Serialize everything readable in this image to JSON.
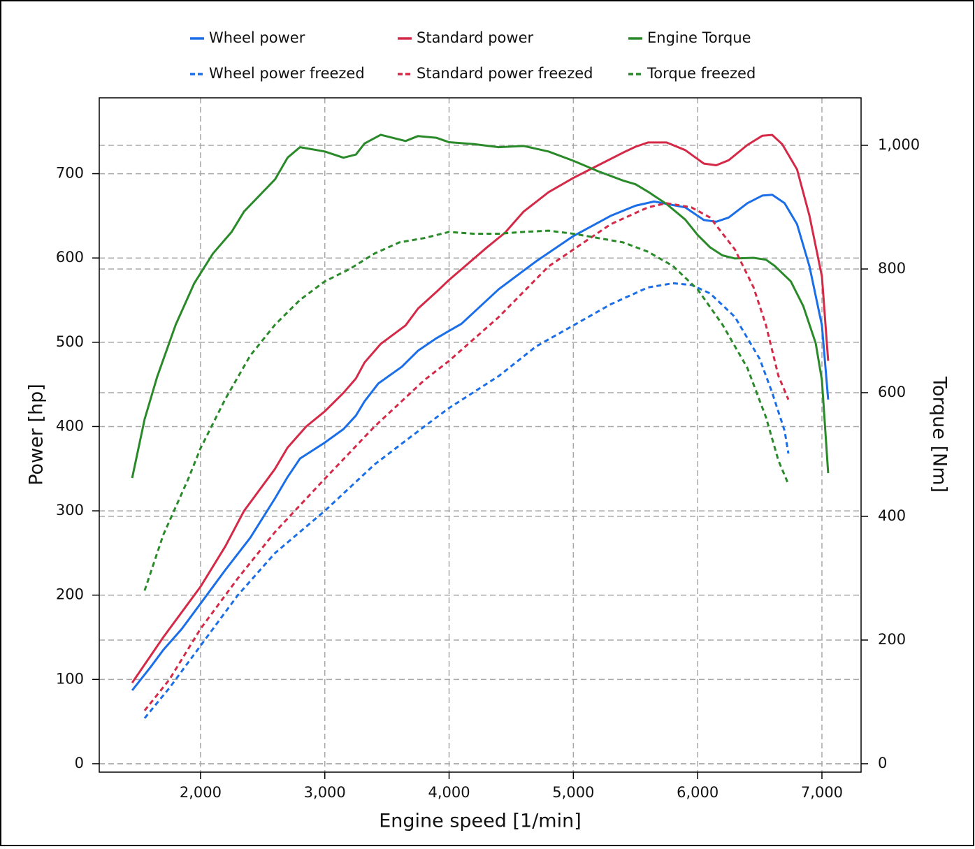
{
  "chart_data": {
    "type": "line",
    "x_label": "Engine speed [1/min]",
    "y_label": "Power [hp]",
    "y2_label": "Torque [Nm]",
    "xlim": [
      1185,
      7315
    ],
    "xticks": [
      {
        "value": 2000,
        "label": "2,000"
      },
      {
        "value": 3000,
        "label": "3,000"
      },
      {
        "value": 4000,
        "label": "4,000"
      },
      {
        "value": 5000,
        "label": "5,000"
      },
      {
        "value": 6000,
        "label": "6,000"
      },
      {
        "value": 7000,
        "label": "7,000"
      }
    ],
    "ylim": [
      -10,
      790
    ],
    "yticks": [
      0,
      100,
      200,
      300,
      400,
      500,
      600,
      700
    ],
    "y2lim": [
      -13.6,
      1076.8
    ],
    "y2ticks": [
      0,
      200,
      400,
      600,
      800,
      {
        "value": 1000,
        "label": "1,000"
      }
    ],
    "grid": true,
    "legend": "top",
    "series": [
      {
        "name": "Wheel power",
        "color": "#1a6ee8",
        "line_style": "solid",
        "x": [
          1450,
          1600,
          1700,
          1850,
          2000,
          2200,
          2400,
          2600,
          2700,
          2800,
          3000,
          3150,
          3250,
          3320,
          3430,
          3620,
          3750,
          3900,
          4100,
          4400,
          4700,
          5000,
          5300,
          5500,
          5650,
          5900,
          6050,
          6150,
          6250,
          6400,
          6520,
          6600,
          6700,
          6800,
          6900,
          7000,
          7050
        ],
        "values": [
          87,
          115,
          135,
          160,
          190,
          230,
          268,
          315,
          340,
          362,
          381,
          397,
          413,
          430,
          451,
          471,
          490,
          505,
          522,
          563,
          596,
          626,
          650,
          662,
          667,
          660,
          645,
          643,
          648,
          665,
          674,
          675,
          665,
          640,
          590,
          520,
          432
        ]
      },
      {
        "name": "Standard power",
        "color": "#d42a48",
        "line_style": "solid",
        "x": [
          1450,
          1700,
          2000,
          2200,
          2350,
          2600,
          2700,
          2850,
          3000,
          3150,
          3250,
          3320,
          3450,
          3650,
          3750,
          3900,
          4000,
          4300,
          4450,
          4600,
          4800,
          5000,
          5200,
          5400,
          5500,
          5600,
          5750,
          5900,
          6050,
          6150,
          6250,
          6400,
          6520,
          6600,
          6680,
          6800,
          6900,
          7000,
          7050
        ],
        "values": [
          96,
          150,
          210,
          258,
          300,
          350,
          375,
          400,
          418,
          440,
          457,
          476,
          498,
          520,
          540,
          560,
          574,
          612,
          630,
          655,
          678,
          695,
          710,
          725,
          732,
          737,
          737,
          728,
          712,
          710,
          716,
          734,
          745,
          746,
          735,
          705,
          650,
          578,
          478
        ]
      },
      {
        "name": "Engine Torque",
        "color": "#2a8a2a",
        "line_style": "solid",
        "axis": "y2",
        "x": [
          1450,
          1550,
          1650,
          1800,
          1950,
          2100,
          2250,
          2350,
          2600,
          2700,
          2800,
          3000,
          3150,
          3250,
          3320,
          3450,
          3650,
          3750,
          3900,
          4000,
          4200,
          4400,
          4600,
          4800,
          5000,
          5200,
          5400,
          5500,
          5600,
          5750,
          5900,
          6000,
          6100,
          6200,
          6300,
          6450,
          6550,
          6620,
          6750,
          6850,
          6950,
          7000,
          7050
        ],
        "values": [
          462,
          557,
          625,
          710,
          777,
          825,
          860,
          893,
          945,
          980,
          997,
          990,
          980,
          985,
          1003,
          1017,
          1007,
          1015,
          1012,
          1005,
          1002,
          997,
          999,
          990,
          975,
          958,
          943,
          937,
          925,
          905,
          880,
          855,
          835,
          822,
          817,
          818,
          815,
          805,
          780,
          740,
          680,
          620,
          470
        ]
      },
      {
        "name": "Wheel power freezed",
        "color": "#1a6ee8",
        "line_style": "dashed",
        "x": [
          1550,
          1750,
          2000,
          2300,
          2600,
          3000,
          3400,
          3800,
          4000,
          4400,
          4700,
          5000,
          5300,
          5600,
          5800,
          5950,
          6100,
          6300,
          6500,
          6600,
          6700,
          6730
        ],
        "values": [
          54,
          90,
          140,
          200,
          250,
          300,
          355,
          400,
          422,
          460,
          495,
          520,
          545,
          565,
          570,
          568,
          558,
          530,
          480,
          440,
          395,
          368
        ]
      },
      {
        "name": "Standard power freezed",
        "color": "#d42a48",
        "line_style": "dashed",
        "x": [
          1550,
          1750,
          2000,
          2300,
          2600,
          3000,
          3400,
          3800,
          4000,
          4400,
          4800,
          5000,
          5300,
          5600,
          5750,
          5950,
          6100,
          6300,
          6450,
          6550,
          6650,
          6730
        ],
        "values": [
          63,
          100,
          160,
          220,
          275,
          338,
          400,
          455,
          478,
          530,
          590,
          610,
          640,
          660,
          665,
          660,
          648,
          610,
          565,
          520,
          460,
          432
        ]
      },
      {
        "name": "Torque freezed",
        "color": "#2a8a2a",
        "line_style": "dashed",
        "axis": "y2",
        "x": [
          1550,
          1700,
          1900,
          2000,
          2200,
          2400,
          2600,
          2800,
          3000,
          3200,
          3400,
          3600,
          3800,
          4000,
          4200,
          4400,
          4600,
          4800,
          5000,
          5200,
          5400,
          5600,
          5800,
          6000,
          6200,
          6400,
          6550,
          6650,
          6730
        ],
        "values": [
          280,
          370,
          460,
          510,
          590,
          660,
          710,
          750,
          780,
          800,
          825,
          843,
          850,
          860,
          857,
          857,
          860,
          862,
          857,
          850,
          843,
          828,
          805,
          767,
          710,
          640,
          560,
          490,
          452
        ]
      }
    ]
  }
}
